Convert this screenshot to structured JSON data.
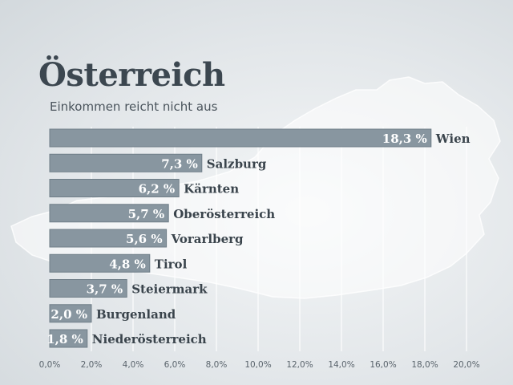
{
  "title": "Österreich",
  "subtitle": "Einkommen reicht nicht aus",
  "colors": {
    "bar": "#8896a0",
    "bar_edge": "#6f7e88",
    "label_text": "#ffffff",
    "category_text": "#3a444c",
    "tick_text": "#5a646c",
    "grid": "#ffffff"
  },
  "chart_data": {
    "type": "bar",
    "orientation": "horizontal",
    "categories": [
      "Wien",
      "Salzburg",
      "Kärnten",
      "Oberösterreich",
      "Vorarlberg",
      "Tirol",
      "Steiermark",
      "Burgenland",
      "Niederösterreich"
    ],
    "values": [
      18.3,
      7.3,
      6.2,
      5.7,
      5.6,
      4.8,
      3.7,
      2.0,
      1.8
    ],
    "value_labels": [
      "18,3 %",
      "7,3 %",
      "6,2 %",
      "5,7 %",
      "5,6 %",
      "4,8 %",
      "3,7 %",
      "2,0 %",
      "1,8 %"
    ],
    "xlim": [
      0,
      20
    ],
    "x_ticks": [
      "0,0%",
      "2,0%",
      "4,0%",
      "6,0%",
      "8,0%",
      "10,0%",
      "12,0%",
      "14,0%",
      "16,0%",
      "18,0%",
      "20,0%"
    ],
    "grid": true,
    "legend": "none"
  }
}
